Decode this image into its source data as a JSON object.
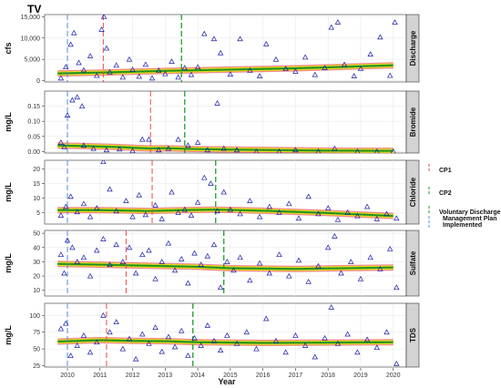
{
  "chart_data": {
    "type": "scatter",
    "title": "TV",
    "xlabel": "Year",
    "xlim": [
      2009.3,
      2020.4
    ],
    "x_ticks": [
      2010,
      2011,
      2012,
      2013,
      2014,
      2015,
      2016,
      2017,
      2018,
      2019,
      2020
    ],
    "legend": {
      "placement": "right",
      "entries": [
        {
          "label": "CP1",
          "color": "#e84a4a"
        },
        {
          "label": "CP2",
          "color": "#1aa12b"
        },
        {
          "label": "Voluntary Discharge",
          "color": "#1aa12b"
        },
        {
          "label": "Management Plan",
          "color": "#4a90d9"
        },
        {
          "label": "Implemented",
          "color": "#4a90d9"
        }
      ]
    },
    "colors": {
      "points": "#1a1aaa",
      "trend": "#2e8b2e",
      "band_red": "#e03030",
      "band_yellow": "#e8e010",
      "band_green": "#20a020",
      "cp1_line": "#e84a4a",
      "cp2_line": "#1aa12b",
      "impl_line": "#4a90d9",
      "strip": "#d3d3d3",
      "grid": "#e6e6e6"
    },
    "facets": [
      {
        "strip": "Discharge",
        "ylabel": "cfs",
        "ylim": [
          -300,
          15500
        ],
        "y_ticks": [
          0,
          5000,
          10000,
          15000
        ],
        "y_tick_labels": [
          "0",
          "5,000",
          "10,000",
          "15,000"
        ],
        "vlines": {
          "implemented": 2010.0,
          "cp1": 2011.1,
          "cp2": 2013.5
        },
        "trend": [
          [
            2009.7,
            1700
          ],
          [
            2011.0,
            1900
          ],
          [
            2013.0,
            2300
          ],
          [
            2015.0,
            2600
          ],
          [
            2017.0,
            2900
          ],
          [
            2020.0,
            3600
          ]
        ],
        "points": [
          [
            2009.8,
            600
          ],
          [
            2009.95,
            3200
          ],
          [
            2010.1,
            8500
          ],
          [
            2010.2,
            11200
          ],
          [
            2010.35,
            4200
          ],
          [
            2010.5,
            2500
          ],
          [
            2010.7,
            5800
          ],
          [
            2010.9,
            1200
          ],
          [
            2011.05,
            12000
          ],
          [
            2011.12,
            15000
          ],
          [
            2011.2,
            7600
          ],
          [
            2011.3,
            2000
          ],
          [
            2011.5,
            3600
          ],
          [
            2011.7,
            800
          ],
          [
            2011.9,
            5000
          ],
          [
            2012.0,
            2600
          ],
          [
            2012.2,
            1000
          ],
          [
            2012.4,
            3800
          ],
          [
            2012.6,
            600
          ],
          [
            2012.8,
            2400
          ],
          [
            2013.0,
            1600
          ],
          [
            2013.2,
            4500
          ],
          [
            2013.4,
            800
          ],
          [
            2013.6,
            3000
          ],
          [
            2013.8,
            1400
          ],
          [
            2014.0,
            3200
          ],
          [
            2014.2,
            11000
          ],
          [
            2014.5,
            9800
          ],
          [
            2014.7,
            6500
          ],
          [
            2015.0,
            1500
          ],
          [
            2015.3,
            9800
          ],
          [
            2015.6,
            2400
          ],
          [
            2015.9,
            1100
          ],
          [
            2016.1,
            8600
          ],
          [
            2016.4,
            5000
          ],
          [
            2016.7,
            2800
          ],
          [
            2017.0,
            2200
          ],
          [
            2017.3,
            5500
          ],
          [
            2017.6,
            1400
          ],
          [
            2017.9,
            3000
          ],
          [
            2018.1,
            12500
          ],
          [
            2018.3,
            13700
          ],
          [
            2018.5,
            3800
          ],
          [
            2018.8,
            1100
          ],
          [
            2019.0,
            2800
          ],
          [
            2019.3,
            6200
          ],
          [
            2019.6,
            10200
          ],
          [
            2019.9,
            1200
          ],
          [
            2020.05,
            13700
          ]
        ]
      },
      {
        "strip": "Bromide",
        "ylabel": "mg/L",
        "ylim": [
          -0.005,
          0.2
        ],
        "y_ticks": [
          0.0,
          0.05,
          0.1,
          0.15
        ],
        "y_tick_labels": [
          "0.00",
          "0.05",
          "0.10",
          "0.15"
        ],
        "vlines": {
          "implemented": 2010.0,
          "cp1": 2012.55,
          "cp2": 2013.6
        },
        "trend": [
          [
            2009.7,
            0.02
          ],
          [
            2010.5,
            0.018
          ],
          [
            2011.5,
            0.015
          ],
          [
            2012.5,
            0.01
          ],
          [
            2013.0,
            0.011
          ],
          [
            2014.0,
            0.008
          ],
          [
            2016.0,
            0.005
          ],
          [
            2018.0,
            0.003
          ],
          [
            2020.0,
            0.002
          ]
        ],
        "points": [
          [
            2009.8,
            0.03
          ],
          [
            2009.9,
            0.015
          ],
          [
            2010.0,
            0.12
          ],
          [
            2010.15,
            0.17
          ],
          [
            2010.3,
            0.18
          ],
          [
            2010.45,
            0.15
          ],
          [
            2010.5,
            0.02
          ],
          [
            2010.8,
            0.01
          ],
          [
            2011.2,
            0.005
          ],
          [
            2011.6,
            0.008
          ],
          [
            2012.0,
            0.002
          ],
          [
            2012.3,
            0.04
          ],
          [
            2012.5,
            0.04
          ],
          [
            2012.8,
            0.005
          ],
          [
            2013.1,
            0.01
          ],
          [
            2013.4,
            0.04
          ],
          [
            2013.7,
            0.02
          ],
          [
            2014.0,
            0.03
          ],
          [
            2014.3,
            0.005
          ],
          [
            2014.6,
            0.16
          ],
          [
            2014.8,
            0.01
          ],
          [
            2015.2,
            0.005
          ],
          [
            2015.8,
            0.0
          ],
          [
            2016.5,
            0.0
          ],
          [
            2017.0,
            0.005
          ],
          [
            2017.7,
            0.0
          ],
          [
            2018.2,
            0.01
          ],
          [
            2018.9,
            0.0
          ],
          [
            2019.5,
            0.0
          ],
          [
            2020.0,
            0.0
          ]
        ]
      },
      {
        "strip": "Chloride",
        "ylabel": "mg/L",
        "ylim": [
          1.0,
          23.0
        ],
        "y_ticks": [
          5,
          10,
          15,
          20
        ],
        "y_tick_labels": [
          "5",
          "10",
          "15",
          "20"
        ],
        "vlines": {
          "implemented": 2010.0,
          "cp1": 2012.6,
          "cp2": 2014.55
        },
        "trend": [
          [
            2009.7,
            5.8
          ],
          [
            2011.0,
            5.8
          ],
          [
            2012.5,
            5.5
          ],
          [
            2013.5,
            5.8
          ],
          [
            2014.5,
            6.0
          ],
          [
            2016.0,
            5.6
          ],
          [
            2018.0,
            4.8
          ],
          [
            2020.0,
            3.8
          ]
        ],
        "points": [
          [
            2009.8,
            4.0
          ],
          [
            2009.95,
            7.0
          ],
          [
            2010.1,
            10.5
          ],
          [
            2010.3,
            5.2
          ],
          [
            2010.5,
            8.0
          ],
          [
            2010.7,
            3.5
          ],
          [
            2010.9,
            6.5
          ],
          [
            2011.1,
            22.5
          ],
          [
            2011.3,
            13.0
          ],
          [
            2011.5,
            5.5
          ],
          [
            2011.8,
            9.0
          ],
          [
            2012.0,
            3.5
          ],
          [
            2012.2,
            11.0
          ],
          [
            2012.4,
            4.2
          ],
          [
            2012.7,
            7.5
          ],
          [
            2012.9,
            2.8
          ],
          [
            2013.2,
            12.0
          ],
          [
            2013.4,
            5.0
          ],
          [
            2013.6,
            6.0
          ],
          [
            2013.8,
            4.0
          ],
          [
            2014.0,
            8.5
          ],
          [
            2014.2,
            17.0
          ],
          [
            2014.4,
            15.0
          ],
          [
            2014.6,
            5.5
          ],
          [
            2014.8,
            12.0
          ],
          [
            2015.0,
            6.0
          ],
          [
            2015.3,
            4.5
          ],
          [
            2015.6,
            9.0
          ],
          [
            2015.9,
            3.5
          ],
          [
            2016.2,
            7.0
          ],
          [
            2016.5,
            5.0
          ],
          [
            2016.8,
            8.0
          ],
          [
            2017.1,
            3.0
          ],
          [
            2017.4,
            10.5
          ],
          [
            2017.7,
            4.5
          ],
          [
            2018.0,
            6.5
          ],
          [
            2018.3,
            2.5
          ],
          [
            2018.6,
            5.0
          ],
          [
            2018.9,
            3.8
          ],
          [
            2019.2,
            7.0
          ],
          [
            2019.5,
            2.8
          ],
          [
            2019.8,
            4.5
          ],
          [
            2020.1,
            3.0
          ]
        ]
      },
      {
        "strip": "Sulfate",
        "ylabel": "mg/L",
        "ylim": [
          6,
          52
        ],
        "y_ticks": [
          10,
          20,
          30,
          40,
          50
        ],
        "y_tick_labels": [
          "10",
          "20",
          "30",
          "40",
          "50"
        ],
        "vlines": {
          "implemented": 2010.0,
          "cp1": 2011.8,
          "cp2": 2014.8
        },
        "trend": [
          [
            2009.7,
            28.5
          ],
          [
            2011.0,
            28.0
          ],
          [
            2012.0,
            27.5
          ],
          [
            2013.0,
            27.0
          ],
          [
            2014.0,
            26.5
          ],
          [
            2015.0,
            25.5
          ],
          [
            2017.0,
            25.0
          ],
          [
            2020.0,
            26.0
          ]
        ],
        "points": [
          [
            2009.8,
            35
          ],
          [
            2009.9,
            22
          ],
          [
            2010.0,
            45
          ],
          [
            2010.15,
            40
          ],
          [
            2010.3,
            30
          ],
          [
            2010.5,
            33
          ],
          [
            2010.7,
            20
          ],
          [
            2010.9,
            38
          ],
          [
            2011.1,
            46
          ],
          [
            2011.3,
            28
          ],
          [
            2011.5,
            42
          ],
          [
            2011.7,
            30
          ],
          [
            2011.9,
            40
          ],
          [
            2012.1,
            22
          ],
          [
            2012.3,
            35
          ],
          [
            2012.5,
            38
          ],
          [
            2012.7,
            18
          ],
          [
            2012.9,
            30
          ],
          [
            2013.1,
            43
          ],
          [
            2013.3,
            24
          ],
          [
            2013.5,
            32
          ],
          [
            2013.7,
            15
          ],
          [
            2013.9,
            36
          ],
          [
            2014.1,
            28
          ],
          [
            2014.3,
            34
          ],
          [
            2014.5,
            42
          ],
          [
            2014.7,
            12
          ],
          [
            2014.9,
            30
          ],
          [
            2015.1,
            24
          ],
          [
            2015.3,
            33
          ],
          [
            2015.6,
            17
          ],
          [
            2015.9,
            29
          ],
          [
            2016.2,
            22
          ],
          [
            2016.5,
            35
          ],
          [
            2016.8,
            20
          ],
          [
            2017.1,
            31
          ],
          [
            2017.4,
            16
          ],
          [
            2017.7,
            27
          ],
          [
            2018.0,
            40
          ],
          [
            2018.2,
            48
          ],
          [
            2018.4,
            22
          ],
          [
            2018.7,
            30
          ],
          [
            2019.0,
            18
          ],
          [
            2019.3,
            33
          ],
          [
            2019.6,
            25
          ],
          [
            2019.9,
            39
          ],
          [
            2020.1,
            12
          ]
        ]
      },
      {
        "strip": "TDS",
        "ylabel": "mg/L",
        "ylim": [
          23,
          118
        ],
        "y_ticks": [
          25,
          50,
          75,
          100
        ],
        "y_tick_labels": [
          "25",
          "50",
          "75",
          "100"
        ],
        "vlines": {
          "implemented": 2010.0,
          "cp1": 2011.2,
          "cp2": 2013.85
        },
        "trend": [
          [
            2009.7,
            61
          ],
          [
            2011.0,
            63
          ],
          [
            2012.0,
            62
          ],
          [
            2013.0,
            61.5
          ],
          [
            2014.0,
            60
          ],
          [
            2016.0,
            59
          ],
          [
            2018.0,
            59.5
          ],
          [
            2020.0,
            60
          ]
        ],
        "points": [
          [
            2009.8,
            80
          ],
          [
            2009.95,
            88
          ],
          [
            2010.1,
            40
          ],
          [
            2010.3,
            55
          ],
          [
            2010.5,
            70
          ],
          [
            2010.7,
            45
          ],
          [
            2010.9,
            60
          ],
          [
            2011.1,
            100
          ],
          [
            2011.3,
            75
          ],
          [
            2011.5,
            90
          ],
          [
            2011.7,
            50
          ],
          [
            2011.9,
            65
          ],
          [
            2012.1,
            35
          ],
          [
            2012.3,
            72
          ],
          [
            2012.5,
            58
          ],
          [
            2012.7,
            82
          ],
          [
            2012.9,
            46
          ],
          [
            2013.1,
            68
          ],
          [
            2013.3,
            53
          ],
          [
            2013.5,
            77
          ],
          [
            2013.7,
            40
          ],
          [
            2013.9,
            66
          ],
          [
            2014.1,
            55
          ],
          [
            2014.3,
            85
          ],
          [
            2014.5,
            62
          ],
          [
            2014.7,
            48
          ],
          [
            2014.9,
            70
          ],
          [
            2015.2,
            58
          ],
          [
            2015.5,
            75
          ],
          [
            2015.8,
            50
          ],
          [
            2016.1,
            95
          ],
          [
            2016.4,
            62
          ],
          [
            2016.7,
            45
          ],
          [
            2017.0,
            70
          ],
          [
            2017.3,
            55
          ],
          [
            2017.6,
            38
          ],
          [
            2017.9,
            66
          ],
          [
            2018.1,
            112
          ],
          [
            2018.3,
            58
          ],
          [
            2018.6,
            72
          ],
          [
            2018.9,
            45
          ],
          [
            2019.2,
            64
          ],
          [
            2019.5,
            52
          ],
          [
            2019.8,
            75
          ],
          [
            2020.1,
            28
          ]
        ]
      }
    ]
  }
}
